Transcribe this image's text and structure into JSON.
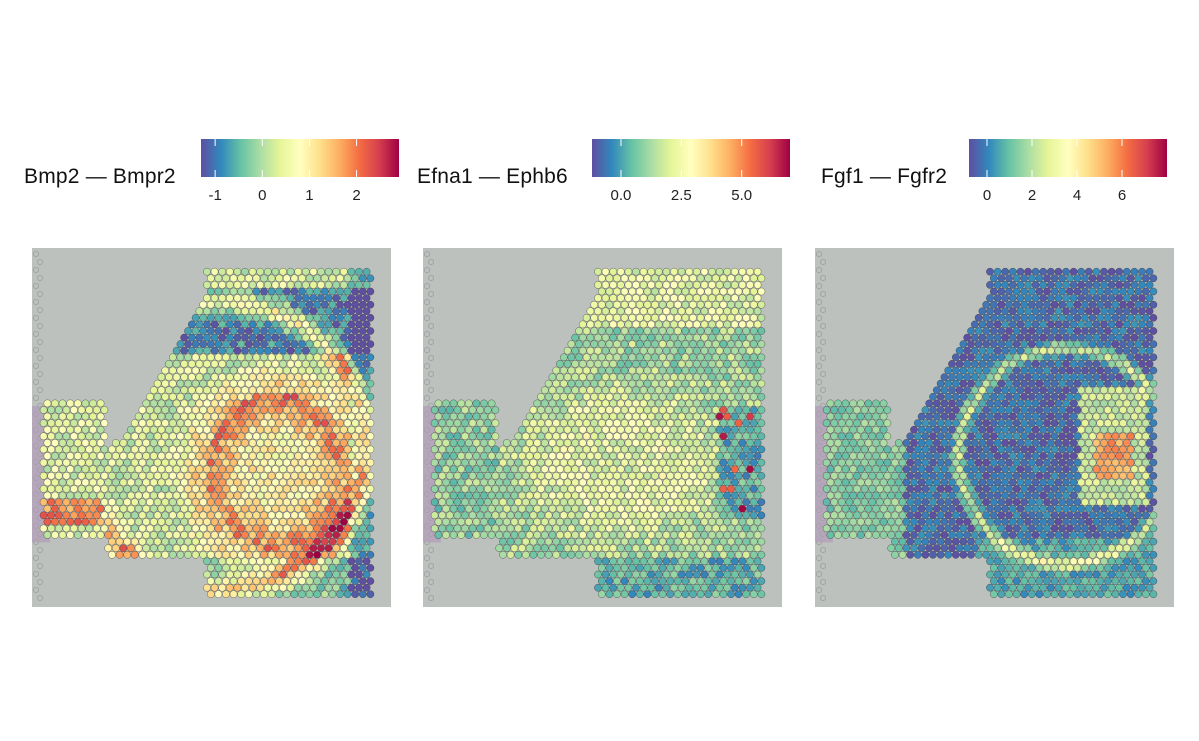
{
  "chart_data": [
    {
      "type": "heatmap",
      "title": "Bmp2 — Bmpr2",
      "colorbar": {
        "min": -1.3,
        "max": 2.9,
        "ticks": [
          "-1",
          "0",
          "1",
          "2"
        ],
        "tick_values": [
          -1,
          0,
          1,
          2
        ]
      },
      "colormap": [
        "#5e4fa2",
        "#3288bd",
        "#66c2a5",
        "#abdda4",
        "#e6f598",
        "#ffffbf",
        "#fee08b",
        "#fdae61",
        "#f46d43",
        "#d53e4f",
        "#9e0142"
      ],
      "pattern": "bmp"
    },
    {
      "type": "heatmap",
      "title": "Efna1 — Ephb6",
      "colorbar": {
        "min": -1.2,
        "max": 7.0,
        "ticks": [
          "0.0",
          "2.5",
          "5.0"
        ],
        "tick_values": [
          0.0,
          2.5,
          5.0
        ]
      },
      "colormap": [
        "#5e4fa2",
        "#3288bd",
        "#66c2a5",
        "#abdda4",
        "#e6f598",
        "#ffffbf",
        "#fee08b",
        "#fdae61",
        "#f46d43",
        "#d53e4f",
        "#9e0142"
      ],
      "pattern": "efna"
    },
    {
      "type": "heatmap",
      "title": "Fgf1 — Fgfr2",
      "colorbar": {
        "min": -0.8,
        "max": 8.0,
        "ticks": [
          "0",
          "2",
          "4",
          "6"
        ],
        "tick_values": [
          0,
          2,
          4,
          6
        ]
      },
      "colormap": [
        "#5e4fa2",
        "#3288bd",
        "#66c2a5",
        "#abdda4",
        "#e6f598",
        "#ffffbf",
        "#fee08b",
        "#fdae61",
        "#f46d43",
        "#d53e4f",
        "#9e0142"
      ],
      "pattern": "fgf"
    }
  ]
}
